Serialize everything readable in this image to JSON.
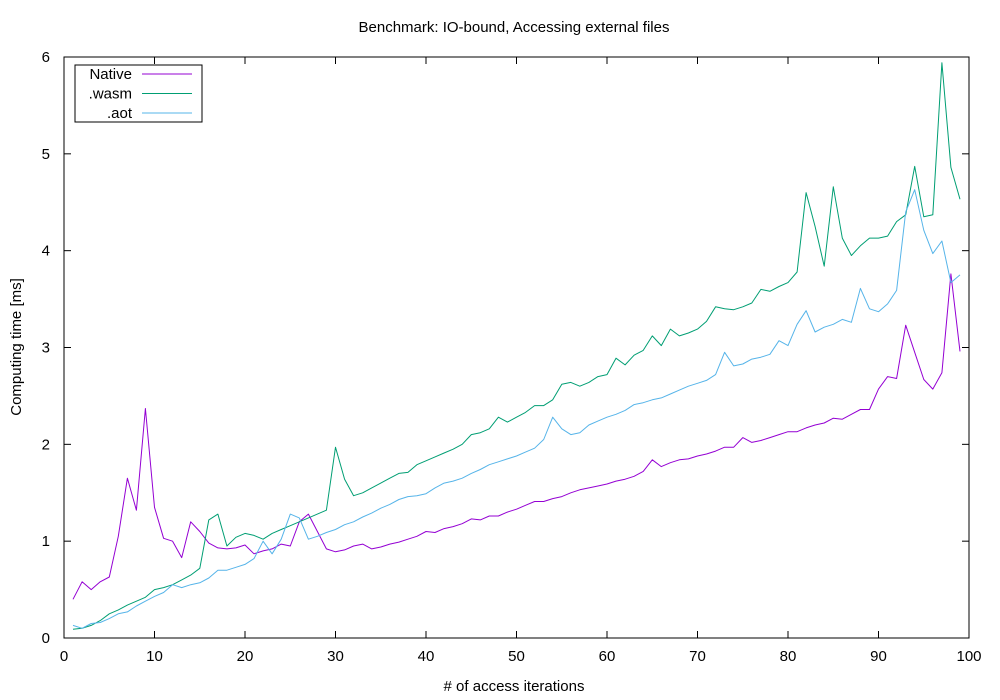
{
  "chart_data": {
    "type": "line",
    "title": "Benchmark: IO-bound, Accessing external files",
    "xlabel": "# of access iterations",
    "ylabel": "Computing time [ms]",
    "xlim": [
      0,
      100
    ],
    "ylim": [
      0,
      6
    ],
    "xticks": [
      0,
      10,
      20,
      30,
      40,
      50,
      60,
      70,
      80,
      90,
      100
    ],
    "yticks": [
      0,
      1,
      2,
      3,
      4,
      5,
      6
    ],
    "grid": false,
    "legend_position": "top-left",
    "x": [
      1,
      2,
      3,
      4,
      5,
      6,
      7,
      8,
      9,
      10,
      11,
      12,
      13,
      14,
      15,
      16,
      17,
      18,
      19,
      20,
      21,
      22,
      23,
      24,
      25,
      26,
      27,
      28,
      29,
      30,
      31,
      32,
      33,
      34,
      35,
      36,
      37,
      38,
      39,
      40,
      41,
      42,
      43,
      44,
      45,
      46,
      47,
      48,
      49,
      50,
      51,
      52,
      53,
      54,
      55,
      56,
      57,
      58,
      59,
      60,
      61,
      62,
      63,
      64,
      65,
      66,
      67,
      68,
      69,
      70,
      71,
      72,
      73,
      74,
      75,
      76,
      77,
      78,
      79,
      80,
      81,
      82,
      83,
      84,
      85,
      86,
      87,
      88,
      89,
      90,
      91,
      92,
      93,
      94,
      95,
      96,
      97,
      98,
      99
    ],
    "series": [
      {
        "name": "Native",
        "color": "#9400d3",
        "values": [
          0.4,
          0.58,
          0.5,
          0.58,
          0.63,
          1.05,
          1.65,
          1.32,
          2.37,
          1.35,
          1.03,
          1.0,
          0.83,
          1.2,
          1.1,
          0.98,
          0.93,
          0.92,
          0.93,
          0.96,
          0.87,
          0.9,
          0.92,
          0.97,
          0.95,
          1.2,
          1.28,
          1.1,
          0.92,
          0.89,
          0.91,
          0.95,
          0.97,
          0.92,
          0.94,
          0.97,
          0.99,
          1.02,
          1.05,
          1.1,
          1.09,
          1.13,
          1.15,
          1.18,
          1.23,
          1.22,
          1.26,
          1.26,
          1.3,
          1.33,
          1.37,
          1.41,
          1.41,
          1.44,
          1.46,
          1.5,
          1.53,
          1.55,
          1.57,
          1.59,
          1.62,
          1.64,
          1.67,
          1.72,
          1.84,
          1.77,
          1.81,
          1.84,
          1.85,
          1.88,
          1.9,
          1.93,
          1.97,
          1.97,
          2.07,
          2.02,
          2.04,
          2.07,
          2.1,
          2.13,
          2.13,
          2.17,
          2.2,
          2.22,
          2.27,
          2.26,
          2.31,
          2.36,
          2.36,
          2.57,
          2.7,
          2.68,
          3.23,
          2.95,
          2.67,
          2.57,
          2.74,
          3.76,
          2.96
        ]
      },
      {
        "name": ".wasm",
        "color": "#009e73",
        "values": [
          0.09,
          0.1,
          0.13,
          0.18,
          0.25,
          0.29,
          0.34,
          0.38,
          0.42,
          0.5,
          0.52,
          0.55,
          0.6,
          0.65,
          0.72,
          1.22,
          1.28,
          0.95,
          1.04,
          1.08,
          1.06,
          1.02,
          1.08,
          1.12,
          1.16,
          1.2,
          1.24,
          1.28,
          1.32,
          1.97,
          1.64,
          1.47,
          1.5,
          1.55,
          1.6,
          1.65,
          1.7,
          1.71,
          1.79,
          1.83,
          1.87,
          1.91,
          1.95,
          2.0,
          2.1,
          2.12,
          2.16,
          2.28,
          2.23,
          2.28,
          2.33,
          2.4,
          2.4,
          2.46,
          2.62,
          2.64,
          2.6,
          2.64,
          2.7,
          2.72,
          2.89,
          2.82,
          2.92,
          2.97,
          3.12,
          3.02,
          3.19,
          3.12,
          3.15,
          3.19,
          3.27,
          3.42,
          3.4,
          3.39,
          3.42,
          3.46,
          3.6,
          3.58,
          3.63,
          3.67,
          3.78,
          4.6,
          4.25,
          3.84,
          4.66,
          4.13,
          3.95,
          4.05,
          4.13,
          4.13,
          4.15,
          4.3,
          4.37,
          4.87,
          4.35,
          4.37,
          5.94,
          4.86,
          4.53
        ]
      },
      {
        "name": ".aot",
        "color": "#56b4e9",
        "values": [
          0.13,
          0.1,
          0.15,
          0.16,
          0.2,
          0.25,
          0.27,
          0.33,
          0.38,
          0.43,
          0.47,
          0.55,
          0.52,
          0.55,
          0.57,
          0.62,
          0.7,
          0.7,
          0.73,
          0.76,
          0.82,
          1.0,
          0.87,
          1.02,
          1.28,
          1.24,
          1.02,
          1.05,
          1.09,
          1.12,
          1.17,
          1.2,
          1.25,
          1.29,
          1.34,
          1.38,
          1.43,
          1.46,
          1.47,
          1.49,
          1.55,
          1.6,
          1.62,
          1.65,
          1.7,
          1.74,
          1.79,
          1.82,
          1.85,
          1.88,
          1.92,
          1.96,
          2.05,
          2.28,
          2.16,
          2.1,
          2.12,
          2.2,
          2.24,
          2.28,
          2.31,
          2.35,
          2.41,
          2.43,
          2.46,
          2.48,
          2.52,
          2.56,
          2.6,
          2.63,
          2.66,
          2.72,
          2.95,
          2.81,
          2.83,
          2.88,
          2.9,
          2.93,
          3.07,
          3.02,
          3.24,
          3.38,
          3.16,
          3.21,
          3.24,
          3.29,
          3.26,
          3.61,
          3.4,
          3.37,
          3.45,
          3.59,
          4.4,
          4.63,
          4.21,
          3.97,
          4.1,
          3.67,
          3.75
        ]
      }
    ]
  }
}
